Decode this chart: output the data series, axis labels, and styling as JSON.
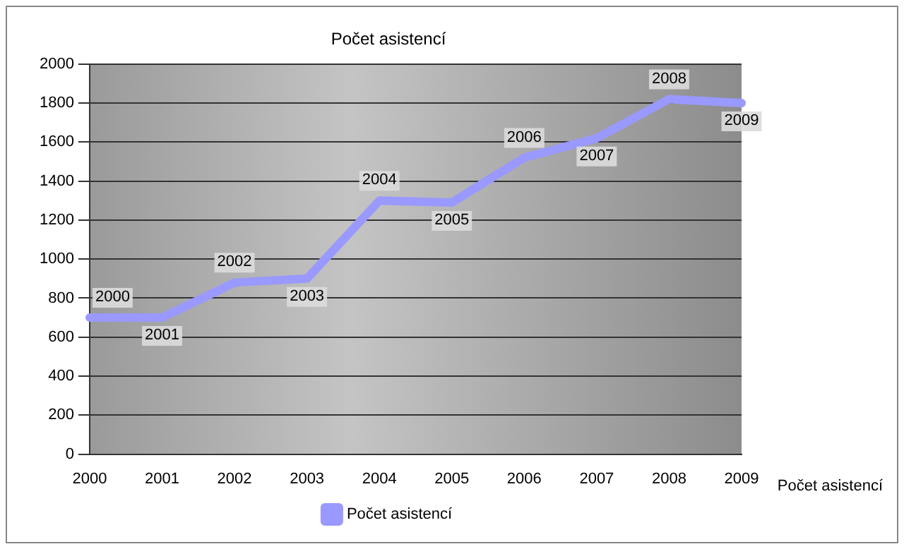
{
  "chart_data": {
    "type": "line",
    "title": "Počet asistencí",
    "categories": [
      "2000",
      "2001",
      "2002",
      "2003",
      "2004",
      "2005",
      "2006",
      "2007",
      "2008",
      "2009"
    ],
    "series": [
      {
        "name": "Počet asistencí",
        "color": "#9999ff",
        "values": [
          700,
          700,
          880,
          900,
          1300,
          1290,
          1520,
          1620,
          1820,
          1800
        ]
      }
    ],
    "ylim": [
      0,
      2000
    ],
    "yticks": [
      0,
      200,
      400,
      600,
      800,
      1000,
      1200,
      1400,
      1600,
      1800,
      2000
    ],
    "grid": "y",
    "legend": "bottom",
    "marker": "none",
    "annotations": [
      {
        "text": "2000",
        "x": "2000",
        "y": 700
      },
      {
        "text": "2001",
        "x": "2001",
        "y": 700
      },
      {
        "text": "2002",
        "x": "2002",
        "y": 880
      },
      {
        "text": "2003",
        "x": "2003",
        "y": 900
      },
      {
        "text": "2004",
        "x": "2004",
        "y": 1300
      },
      {
        "text": "2005",
        "x": "2005",
        "y": 1290
      },
      {
        "text": "2006",
        "x": "2006",
        "y": 1520
      },
      {
        "text": "2007",
        "x": "2007",
        "y": 1620
      },
      {
        "text": "2008",
        "x": "2008",
        "y": 1820
      },
      {
        "text": "2009",
        "x": "2009",
        "y": 1800
      },
      "Počet asistencí"
    ]
  }
}
